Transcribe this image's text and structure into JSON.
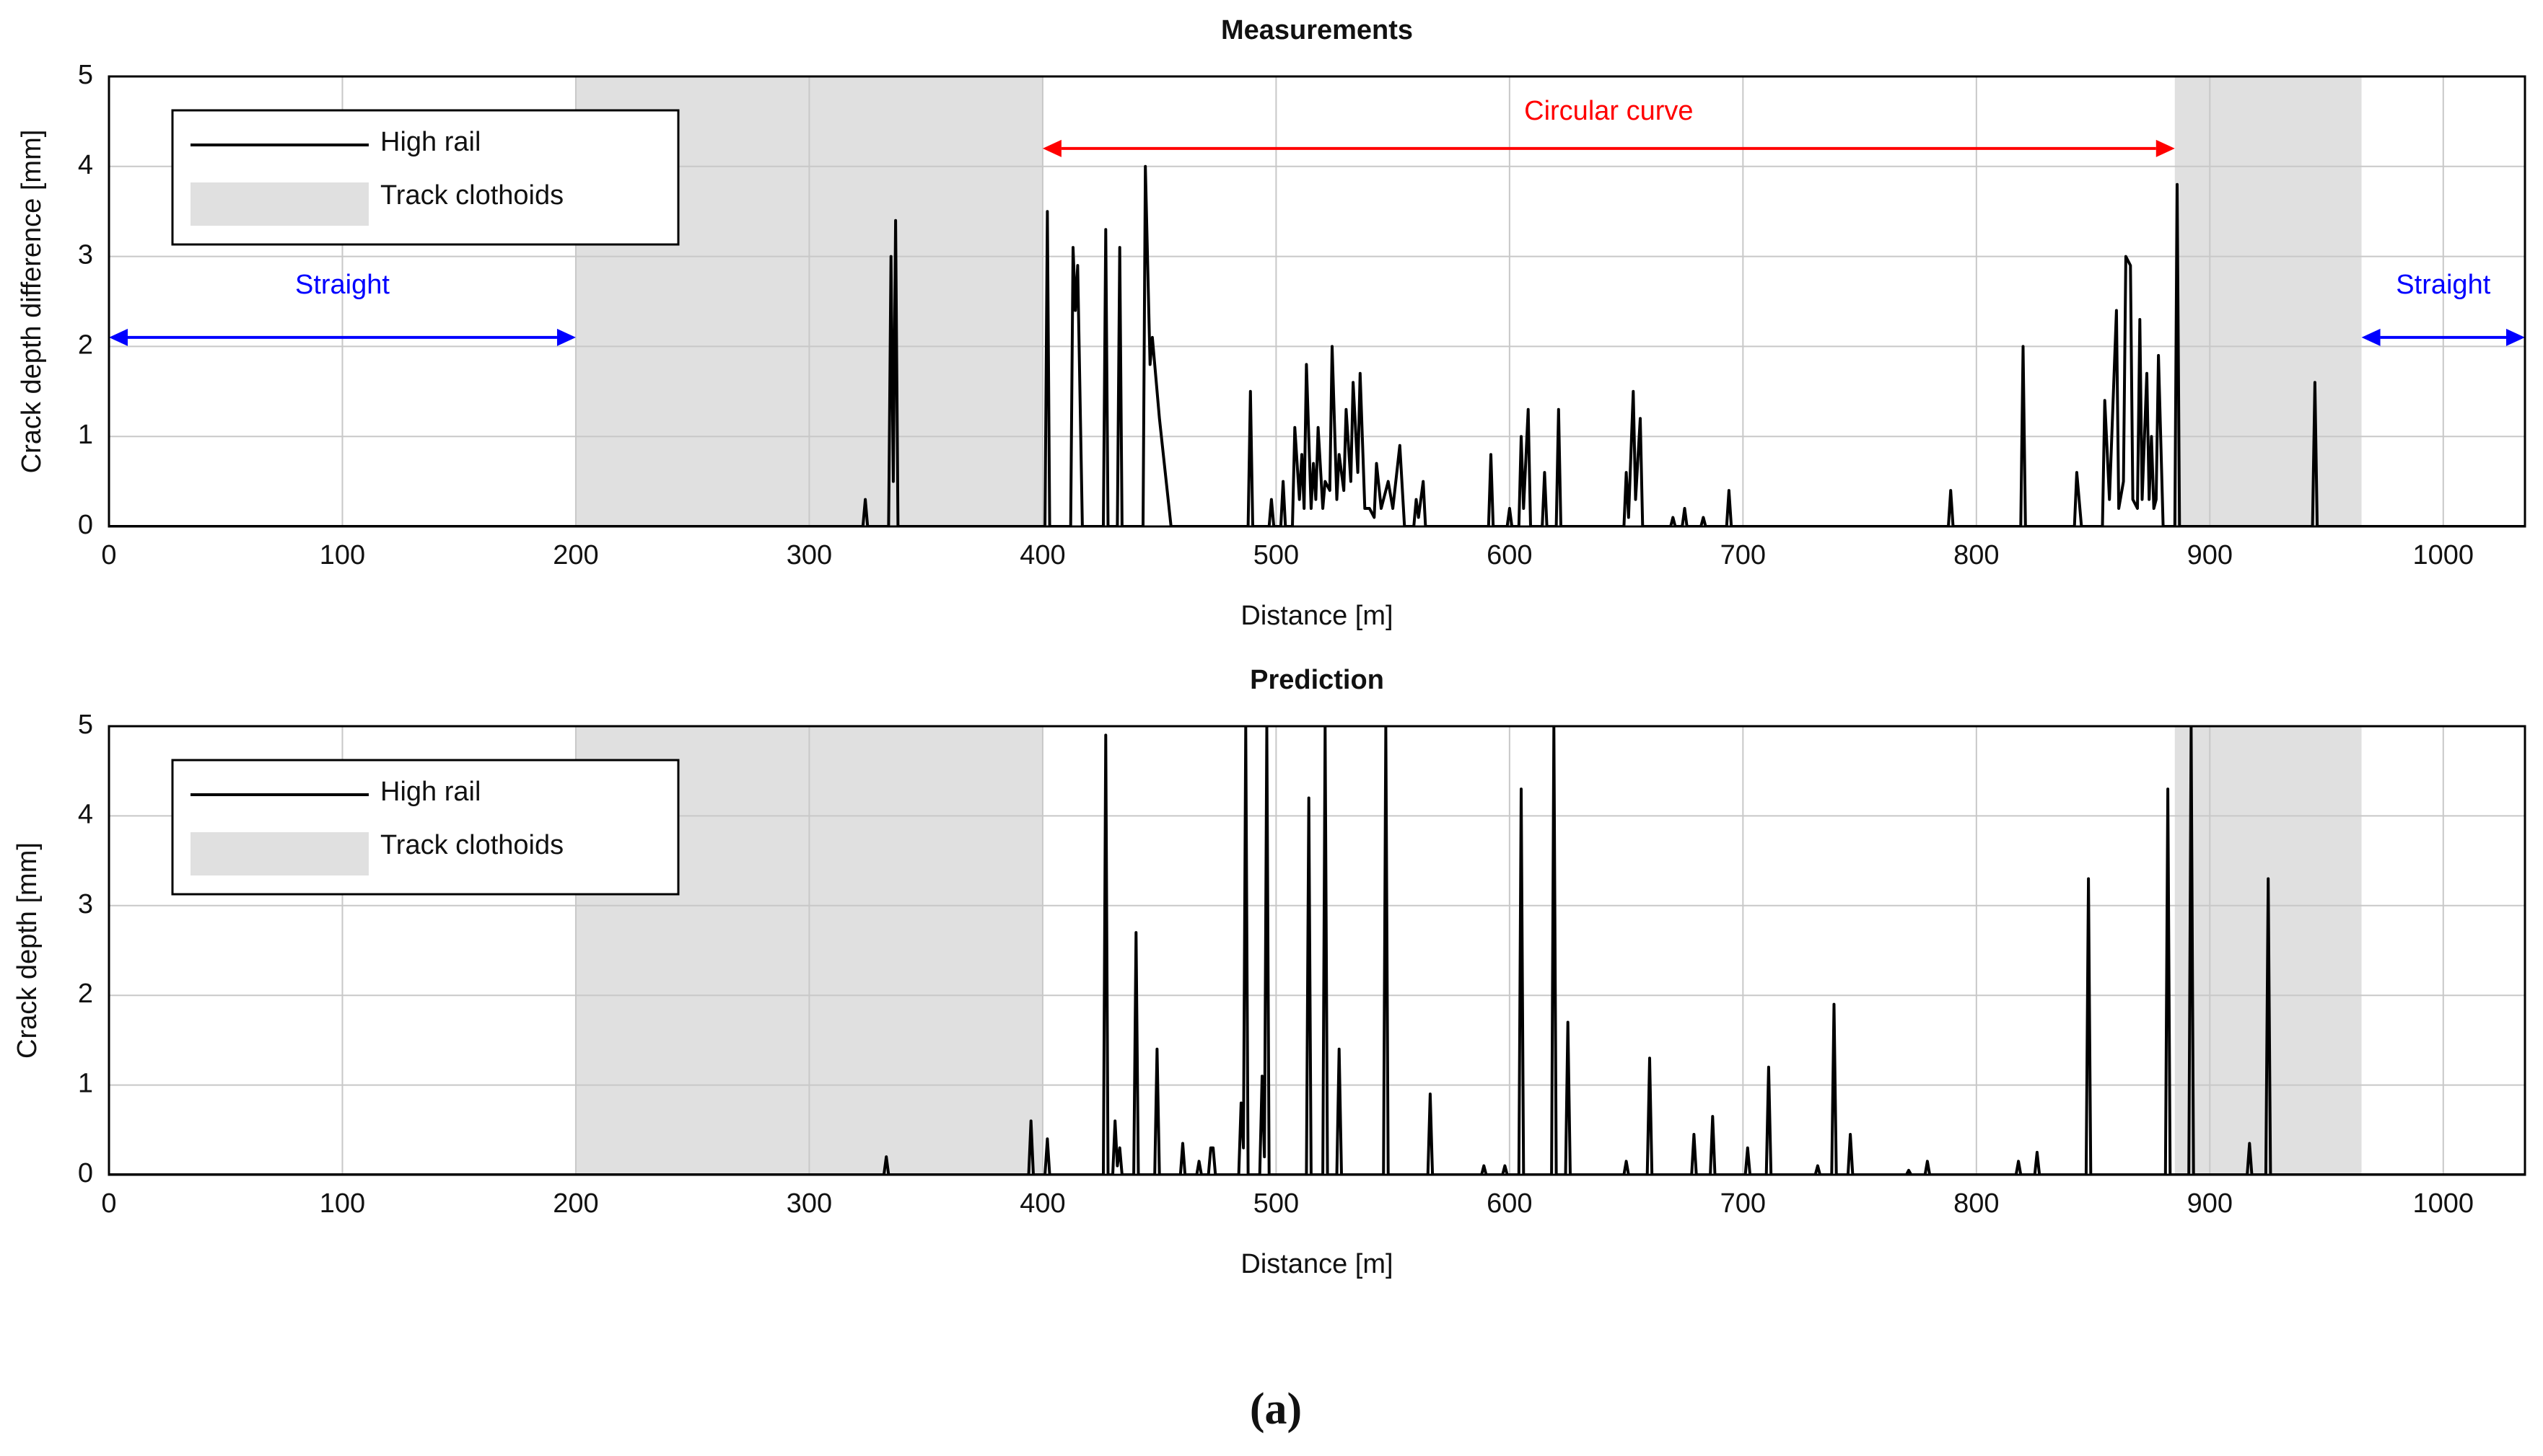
{
  "caption": "(a)",
  "chart_data": [
    {
      "type": "line",
      "title": "Measurements",
      "xlabel": "Distance [m]",
      "ylabel": "Crack depth difference [mm]",
      "xlim": [
        0,
        1035
      ],
      "ylim": [
        0,
        5
      ],
      "xticks": [
        0,
        100,
        200,
        300,
        400,
        500,
        600,
        700,
        800,
        900,
        1000
      ],
      "yticks": [
        0,
        1,
        2,
        3,
        4,
        5
      ],
      "grid": true,
      "legend": "upper left",
      "regions": {
        "name": "Track clothoids",
        "color": "#e0e0e0",
        "spans": [
          [
            200,
            400
          ],
          [
            885,
            965
          ]
        ]
      },
      "annotations": [
        {
          "text": "Straight",
          "x0": 0,
          "x1": 200,
          "y": 2.1,
          "text_y": 2.67,
          "color": "#0000ff"
        },
        {
          "text": "Circular curve",
          "x0": 400,
          "x1": 885,
          "y": 4.2,
          "text_y": 4.6,
          "color": "#ff0000"
        },
        {
          "text": "Straight",
          "x0": 965,
          "x1": 1035,
          "y": 2.1,
          "text_y": 2.67,
          "color": "#0000ff"
        }
      ],
      "series": [
        {
          "name": "High rail",
          "color": "#000000",
          "x": [
            0,
            323,
            324,
            325,
            334,
            335,
            336,
            337,
            338,
            401,
            402,
            403,
            412,
            413,
            414,
            415,
            417,
            426,
            427,
            428,
            432,
            433,
            434,
            443,
            444,
            446,
            447,
            450,
            455,
            488,
            489,
            490,
            497,
            498,
            499,
            502,
            503,
            504,
            507,
            508,
            510,
            511,
            512,
            513,
            515,
            516,
            517,
            518,
            520,
            521,
            523,
            524,
            526,
            527,
            529,
            530,
            532,
            533,
            535,
            536,
            538,
            540,
            542,
            543,
            545,
            548,
            550,
            553,
            555,
            559,
            560,
            561,
            563,
            564,
            591,
            592,
            593,
            599,
            600,
            601,
            604,
            605,
            606,
            608,
            609,
            614,
            615,
            616,
            620,
            621,
            622,
            649,
            650,
            651,
            653,
            654,
            656,
            657,
            669,
            670,
            671,
            674,
            675,
            676,
            682,
            683,
            684,
            693,
            694,
            695,
            788,
            789,
            790,
            819,
            820,
            821,
            842,
            843,
            845,
            854,
            855,
            857,
            860,
            861,
            863,
            864,
            866,
            867,
            869,
            870,
            871,
            873,
            874,
            875,
            876,
            877,
            878,
            880,
            885,
            886,
            887,
            944,
            945,
            946,
            1035
          ],
          "values": [
            0,
            0,
            0.3,
            0,
            0,
            3.0,
            0.5,
            3.4,
            0,
            0,
            3.5,
            0,
            0,
            3.1,
            2.4,
            2.9,
            0,
            0,
            3.3,
            0,
            0,
            3.1,
            0,
            0,
            4.0,
            1.8,
            2.1,
            1.2,
            0,
            0,
            1.5,
            0,
            0,
            0.3,
            0,
            0,
            0.5,
            0,
            0,
            1.1,
            0.3,
            0.8,
            0.2,
            1.8,
            0.2,
            0.7,
            0.3,
            1.1,
            0.2,
            0.5,
            0.4,
            2.0,
            0.3,
            0.8,
            0.4,
            1.3,
            0.5,
            1.6,
            0.6,
            1.7,
            0.2,
            0.2,
            0.1,
            0.7,
            0.2,
            0.5,
            0.2,
            0.9,
            0,
            0,
            0.3,
            0.1,
            0.5,
            0,
            0,
            0.8,
            0,
            0,
            0.2,
            0,
            0,
            1.0,
            0.2,
            1.3,
            0,
            0,
            0.6,
            0,
            0,
            1.3,
            0,
            0,
            0.6,
            0.1,
            1.5,
            0.3,
            1.2,
            0,
            0,
            0.1,
            0,
            0,
            0.2,
            0,
            0,
            0.1,
            0,
            0,
            0.4,
            0,
            0,
            0.4,
            0,
            0,
            2.0,
            0,
            0,
            0.6,
            0,
            0,
            1.4,
            0.3,
            2.4,
            0.2,
            0.5,
            3.0,
            2.9,
            0.3,
            0.2,
            2.3,
            0.3,
            1.7,
            0.3,
            1.0,
            0.2,
            0.3,
            1.9,
            0,
            0,
            3.8,
            0,
            0,
            1.6,
            0,
            0
          ]
        }
      ]
    },
    {
      "type": "line",
      "title": "Prediction",
      "xlabel": "Distance [m]",
      "ylabel": "Crack depth [mm]",
      "xlim": [
        0,
        1035
      ],
      "ylim": [
        0,
        5
      ],
      "xticks": [
        0,
        100,
        200,
        300,
        400,
        500,
        600,
        700,
        800,
        900,
        1000
      ],
      "yticks": [
        0,
        1,
        2,
        3,
        4,
        5
      ],
      "grid": true,
      "legend": "upper left",
      "regions": {
        "name": "Track clothoids",
        "color": "#e0e0e0",
        "spans": [
          [
            200,
            400
          ],
          [
            885,
            965
          ]
        ]
      },
      "series": [
        {
          "name": "High rail",
          "color": "#000000",
          "x": [
            0,
            332,
            333,
            334,
            394,
            395,
            396,
            401,
            402,
            403,
            426,
            427,
            428,
            430,
            431,
            432,
            433,
            434,
            439,
            440,
            441,
            448,
            449,
            450,
            459,
            460,
            461,
            466,
            467,
            468,
            471,
            472,
            473,
            474,
            484,
            485,
            486,
            487,
            488,
            493,
            494,
            495,
            496,
            497,
            513,
            514,
            515,
            520,
            521,
            522,
            526,
            527,
            528,
            546,
            547,
            548,
            565,
            566,
            567,
            588,
            589,
            590,
            597,
            598,
            599,
            604,
            605,
            606,
            618,
            619,
            620,
            624,
            625,
            626,
            649,
            650,
            651,
            659,
            660,
            661,
            678,
            679,
            680,
            686,
            687,
            688,
            701,
            702,
            703,
            710,
            711,
            712,
            731,
            732,
            733,
            738,
            739,
            740,
            745,
            746,
            747,
            770,
            771,
            772,
            778,
            779,
            780,
            817,
            818,
            819,
            825,
            826,
            827,
            847,
            848,
            849,
            881,
            882,
            883,
            891,
            892,
            893,
            916,
            917,
            918,
            924,
            925,
            926,
            1035
          ],
          "values": [
            0,
            0,
            0.2,
            0,
            0,
            0.6,
            0,
            0,
            0.4,
            0,
            0,
            4.9,
            0,
            0,
            0.6,
            0.1,
            0.3,
            0,
            0,
            2.7,
            0,
            0,
            1.4,
            0,
            0,
            0.35,
            0,
            0,
            0.15,
            0,
            0,
            0.3,
            0.3,
            0,
            0,
            0.8,
            0.3,
            5,
            0,
            0,
            1.1,
            0.2,
            5,
            0,
            0,
            4.2,
            0,
            0,
            5,
            0,
            0,
            1.4,
            0,
            0,
            5,
            0,
            0,
            0.9,
            0,
            0,
            0.1,
            0,
            0,
            0.1,
            0,
            0,
            4.3,
            0,
            0,
            5,
            0,
            0,
            1.7,
            0,
            0,
            0.15,
            0,
            0,
            1.3,
            0,
            0,
            0.45,
            0,
            0,
            0.65,
            0,
            0,
            0.3,
            0,
            0,
            1.2,
            0,
            0,
            0.1,
            0,
            0,
            1.9,
            0,
            0,
            0.45,
            0,
            0,
            0.05,
            0,
            0,
            0.15,
            0,
            0,
            0.15,
            0,
            0,
            0.25,
            0,
            0,
            3.3,
            0,
            0,
            4.3,
            0,
            0,
            5,
            0,
            0,
            0.35,
            0,
            0,
            3.3,
            0,
            0
          ]
        }
      ]
    }
  ]
}
